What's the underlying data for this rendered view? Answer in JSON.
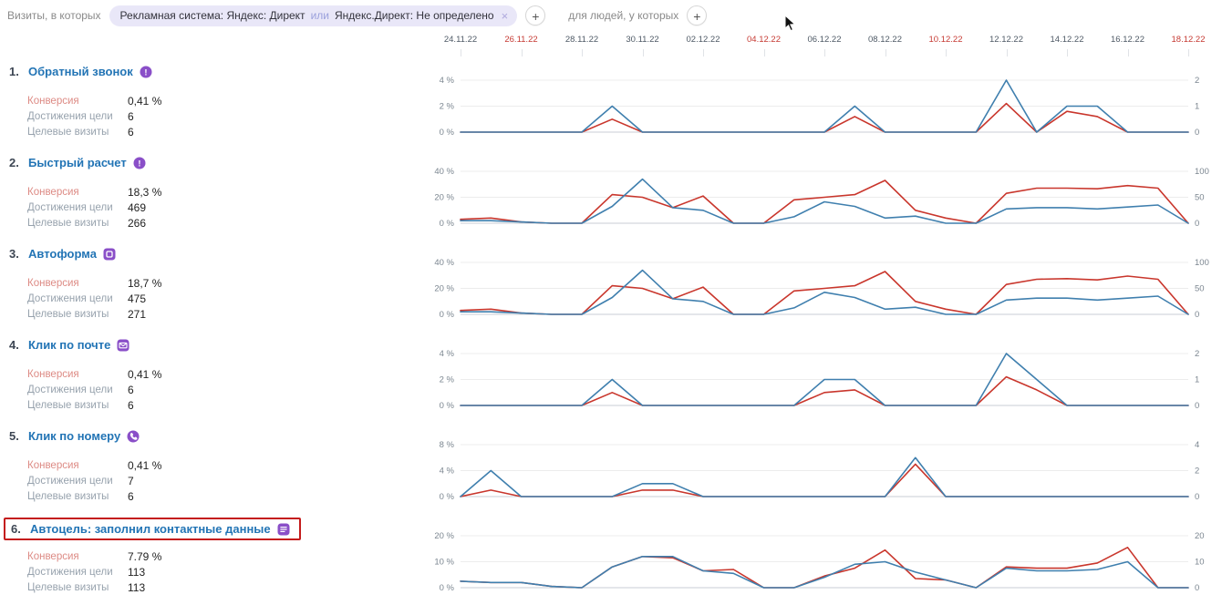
{
  "filter_bar": {
    "visits_label": "Визиты, в которых",
    "chip": {
      "text_main": "Рекламная система: Яндекс: Директ",
      "text_or": "или",
      "text_rest": "Яндекс.Директ: Не определено",
      "close": "×"
    },
    "add_visit_condition": "+",
    "people_label": "для людей, у которых",
    "add_people_condition": "+"
  },
  "stats_labels": {
    "conversion": "Конверсия",
    "reaches": "Достижения цели",
    "visits": "Целевые визиты"
  },
  "goals": [
    {
      "num": "1.",
      "title": "Обратный звонок",
      "icon": "js-event-icon",
      "conversion": "0,41 %",
      "reaches": "6",
      "visits": "6",
      "highlighted": false
    },
    {
      "num": "2.",
      "title": "Быстрый расчет",
      "icon": "js-event-icon",
      "conversion": "18,3 %",
      "reaches": "469",
      "visits": "266",
      "highlighted": false
    },
    {
      "num": "3.",
      "title": "Автоформа",
      "icon": "form-icon",
      "conversion": "18,7 %",
      "reaches": "475",
      "visits": "271",
      "highlighted": false
    },
    {
      "num": "4.",
      "title": "Клик по почте",
      "icon": "email-icon",
      "conversion": "0,41 %",
      "reaches": "6",
      "visits": "6",
      "highlighted": false
    },
    {
      "num": "5.",
      "title": "Клик по номеру",
      "icon": "phone-icon",
      "conversion": "0,41 %",
      "reaches": "7",
      "visits": "6",
      "highlighted": false
    },
    {
      "num": "6.",
      "title": "Автоцель: заполнил контактные данные",
      "icon": "contact-form-icon",
      "conversion": "7.79 %",
      "reaches": "113",
      "visits": "113",
      "highlighted": true
    }
  ],
  "theme": {
    "blue_line": "#3f7fae",
    "red_line": "#c9362c",
    "grid": "#ececec",
    "zero_line": "#c9ced4",
    "tick_text": "#7b8690",
    "date_text": "#4f5a66",
    "date_weekend": "#c63b34",
    "accent_purple": "#8a4fc8",
    "title_blue": "#2274b5",
    "highlight_red": "#c41b1b"
  },
  "chart_axis": {
    "tick_dates": [
      {
        "label": "24.11.22",
        "red": false
      },
      {
        "label": "26.11.22",
        "red": true
      },
      {
        "label": "28.11.22",
        "red": false
      },
      {
        "label": "30.11.22",
        "red": false
      },
      {
        "label": "02.12.22",
        "red": false
      },
      {
        "label": "04.12.22",
        "red": true
      },
      {
        "label": "06.12.22",
        "red": false
      },
      {
        "label": "08.12.22",
        "red": false
      },
      {
        "label": "10.12.22",
        "red": true
      },
      {
        "label": "12.12.22",
        "red": false
      },
      {
        "label": "14.12.22",
        "red": false
      },
      {
        "label": "16.12.22",
        "red": false
      },
      {
        "label": "18.12.22",
        "red": true
      }
    ]
  },
  "chart_data": [
    {
      "type": "line",
      "title": "Обратный звонок",
      "x": [
        "24.11.22",
        "25.11.22",
        "26.11.22",
        "27.11.22",
        "28.11.22",
        "29.11.22",
        "30.11.22",
        "01.12.22",
        "02.12.22",
        "03.12.22",
        "04.12.22",
        "05.12.22",
        "06.12.22",
        "07.12.22",
        "08.12.22",
        "09.12.22",
        "10.12.22",
        "11.12.22",
        "12.12.22",
        "13.12.22",
        "14.12.22",
        "15.12.22",
        "16.12.22",
        "17.12.22",
        "18.12.22"
      ],
      "ylim_percent": [
        0,
        4
      ],
      "left_ticks": [
        "4 %",
        "2 %",
        "0 %"
      ],
      "right_ticks": [
        "2",
        "1",
        "0"
      ],
      "series": [
        {
          "name": "series-blue",
          "values": [
            0,
            0,
            0,
            0,
            0,
            2,
            0,
            0,
            0,
            0,
            0,
            0,
            0,
            2,
            0,
            0,
            0,
            0,
            4,
            0,
            2,
            2,
            0,
            0,
            0
          ]
        },
        {
          "name": "series-red",
          "values": [
            0,
            0,
            0,
            0,
            0,
            1,
            0,
            0,
            0,
            0,
            0,
            0,
            0,
            1.2,
            0,
            0,
            0,
            0,
            2.2,
            0,
            1.6,
            1.2,
            0,
            0,
            0
          ]
        }
      ]
    },
    {
      "type": "line",
      "title": "Быстрый расчет",
      "x": [
        "24.11.22",
        "25.11.22",
        "26.11.22",
        "27.11.22",
        "28.11.22",
        "29.11.22",
        "30.11.22",
        "01.12.22",
        "02.12.22",
        "03.12.22",
        "04.12.22",
        "05.12.22",
        "06.12.22",
        "07.12.22",
        "08.12.22",
        "09.12.22",
        "10.12.22",
        "11.12.22",
        "12.12.22",
        "13.12.22",
        "14.12.22",
        "15.12.22",
        "16.12.22",
        "17.12.22",
        "18.12.22"
      ],
      "ylim_percent": [
        0,
        40
      ],
      "left_ticks": [
        "40 %",
        "20 %",
        "0 %"
      ],
      "right_ticks": [
        "100",
        "50",
        "0"
      ],
      "series": [
        {
          "name": "series-blue",
          "values": [
            2,
            2,
            1,
            0,
            0,
            13,
            34,
            12,
            10,
            0,
            0,
            5,
            16.5,
            13,
            4,
            5.5,
            0,
            0,
            11,
            12,
            12,
            11,
            12.5,
            14,
            0
          ]
        },
        {
          "name": "series-red",
          "values": [
            3,
            4,
            1,
            0,
            0,
            22,
            20,
            12,
            21,
            0,
            0,
            18,
            20,
            22,
            33,
            10,
            4,
            0,
            23,
            27,
            27,
            26.5,
            29,
            27,
            0
          ]
        }
      ]
    },
    {
      "type": "line",
      "title": "Автоформа",
      "x": [
        "24.11.22",
        "25.11.22",
        "26.11.22",
        "27.11.22",
        "28.11.22",
        "29.11.22",
        "30.11.22",
        "01.12.22",
        "02.12.22",
        "03.12.22",
        "04.12.22",
        "05.12.22",
        "06.12.22",
        "07.12.22",
        "08.12.22",
        "09.12.22",
        "10.12.22",
        "11.12.22",
        "12.12.22",
        "13.12.22",
        "14.12.22",
        "15.12.22",
        "16.12.22",
        "17.12.22",
        "18.12.22"
      ],
      "ylim_percent": [
        0,
        40
      ],
      "left_ticks": [
        "40 %",
        "20 %",
        "0 %"
      ],
      "right_ticks": [
        "100",
        "50",
        "0"
      ],
      "series": [
        {
          "name": "series-blue",
          "values": [
            2,
            2,
            1,
            0,
            0,
            13,
            34,
            12,
            10,
            0,
            0,
            5,
            17,
            13,
            4,
            5.5,
            0,
            0,
            11,
            12.5,
            12.5,
            11,
            12.5,
            14,
            0
          ]
        },
        {
          "name": "series-red",
          "values": [
            3,
            4,
            1,
            0,
            0,
            22,
            20,
            12,
            21,
            0,
            0,
            18,
            20,
            22,
            33,
            10,
            4,
            0,
            23,
            27,
            27.5,
            26.5,
            29.5,
            27,
            0
          ]
        }
      ]
    },
    {
      "type": "line",
      "title": "Клик по почте",
      "x": [
        "24.11.22",
        "25.11.22",
        "26.11.22",
        "27.11.22",
        "28.11.22",
        "29.11.22",
        "30.11.22",
        "01.12.22",
        "02.12.22",
        "03.12.22",
        "04.12.22",
        "05.12.22",
        "06.12.22",
        "07.12.22",
        "08.12.22",
        "09.12.22",
        "10.12.22",
        "11.12.22",
        "12.12.22",
        "13.12.22",
        "14.12.22",
        "15.12.22",
        "16.12.22",
        "17.12.22",
        "18.12.22"
      ],
      "ylim_percent": [
        0,
        4
      ],
      "left_ticks": [
        "4 %",
        "2 %",
        "0 %"
      ],
      "right_ticks": [
        "2",
        "1",
        "0"
      ],
      "series": [
        {
          "name": "series-blue",
          "values": [
            0,
            0,
            0,
            0,
            0,
            2,
            0,
            0,
            0,
            0,
            0,
            0,
            2,
            2,
            0,
            0,
            0,
            0,
            4,
            2,
            0,
            0,
            0,
            0,
            0
          ]
        },
        {
          "name": "series-red",
          "values": [
            0,
            0,
            0,
            0,
            0,
            1,
            0,
            0,
            0,
            0,
            0,
            0,
            1,
            1.2,
            0,
            0,
            0,
            0,
            2.2,
            1.2,
            0,
            0,
            0,
            0,
            0
          ]
        }
      ]
    },
    {
      "type": "line",
      "title": "Клик по номеру",
      "x": [
        "24.11.22",
        "25.11.22",
        "26.11.22",
        "27.11.22",
        "28.11.22",
        "29.11.22",
        "30.11.22",
        "01.12.22",
        "02.12.22",
        "03.12.22",
        "04.12.22",
        "05.12.22",
        "06.12.22",
        "07.12.22",
        "08.12.22",
        "09.12.22",
        "10.12.22",
        "11.12.22",
        "12.12.22",
        "13.12.22",
        "14.12.22",
        "15.12.22",
        "16.12.22",
        "17.12.22",
        "18.12.22"
      ],
      "ylim_percent": [
        0,
        8
      ],
      "left_ticks": [
        "8 %",
        "4 %",
        "0 %"
      ],
      "right_ticks": [
        "4",
        "2",
        "0"
      ],
      "series": [
        {
          "name": "series-blue",
          "values": [
            0,
            4,
            0,
            0,
            0,
            0,
            2,
            2,
            0,
            0,
            0,
            0,
            0,
            0,
            0,
            6,
            0,
            0,
            0,
            0,
            0,
            0,
            0,
            0,
            0
          ]
        },
        {
          "name": "series-red",
          "values": [
            0,
            1,
            0,
            0,
            0,
            0,
            1,
            1,
            0,
            0,
            0,
            0,
            0,
            0,
            0,
            5,
            0,
            0,
            0,
            0,
            0,
            0,
            0,
            0,
            0
          ]
        }
      ]
    },
    {
      "type": "line",
      "title": "Автоцель: заполнил контактные данные",
      "x": [
        "24.11.22",
        "25.11.22",
        "26.11.22",
        "27.11.22",
        "28.11.22",
        "29.11.22",
        "30.11.22",
        "01.12.22",
        "02.12.22",
        "03.12.22",
        "04.12.22",
        "05.12.22",
        "06.12.22",
        "07.12.22",
        "08.12.22",
        "09.12.22",
        "10.12.22",
        "11.12.22",
        "12.12.22",
        "13.12.22",
        "14.12.22",
        "15.12.22",
        "16.12.22",
        "17.12.22",
        "18.12.22"
      ],
      "ylim_percent": [
        0,
        20
      ],
      "left_ticks": [
        "20 %",
        "10 %",
        "0 %"
      ],
      "right_ticks": [
        "20",
        "10",
        "0"
      ],
      "series": [
        {
          "name": "series-blue",
          "values": [
            2.5,
            2,
            2,
            0.5,
            0,
            8,
            12,
            12,
            6.5,
            5.5,
            0,
            0,
            4,
            9,
            10,
            6,
            3,
            0,
            7.5,
            6.5,
            6.5,
            7,
            10,
            0,
            0
          ]
        },
        {
          "name": "series-red",
          "values": [
            2.5,
            2,
            2,
            0.5,
            0,
            8,
            12,
            11.5,
            6.5,
            7,
            0,
            0,
            4.5,
            7.5,
            14.5,
            3.5,
            3,
            0,
            8,
            7.5,
            7.5,
            9.5,
            15.5,
            0,
            0
          ]
        }
      ]
    }
  ]
}
